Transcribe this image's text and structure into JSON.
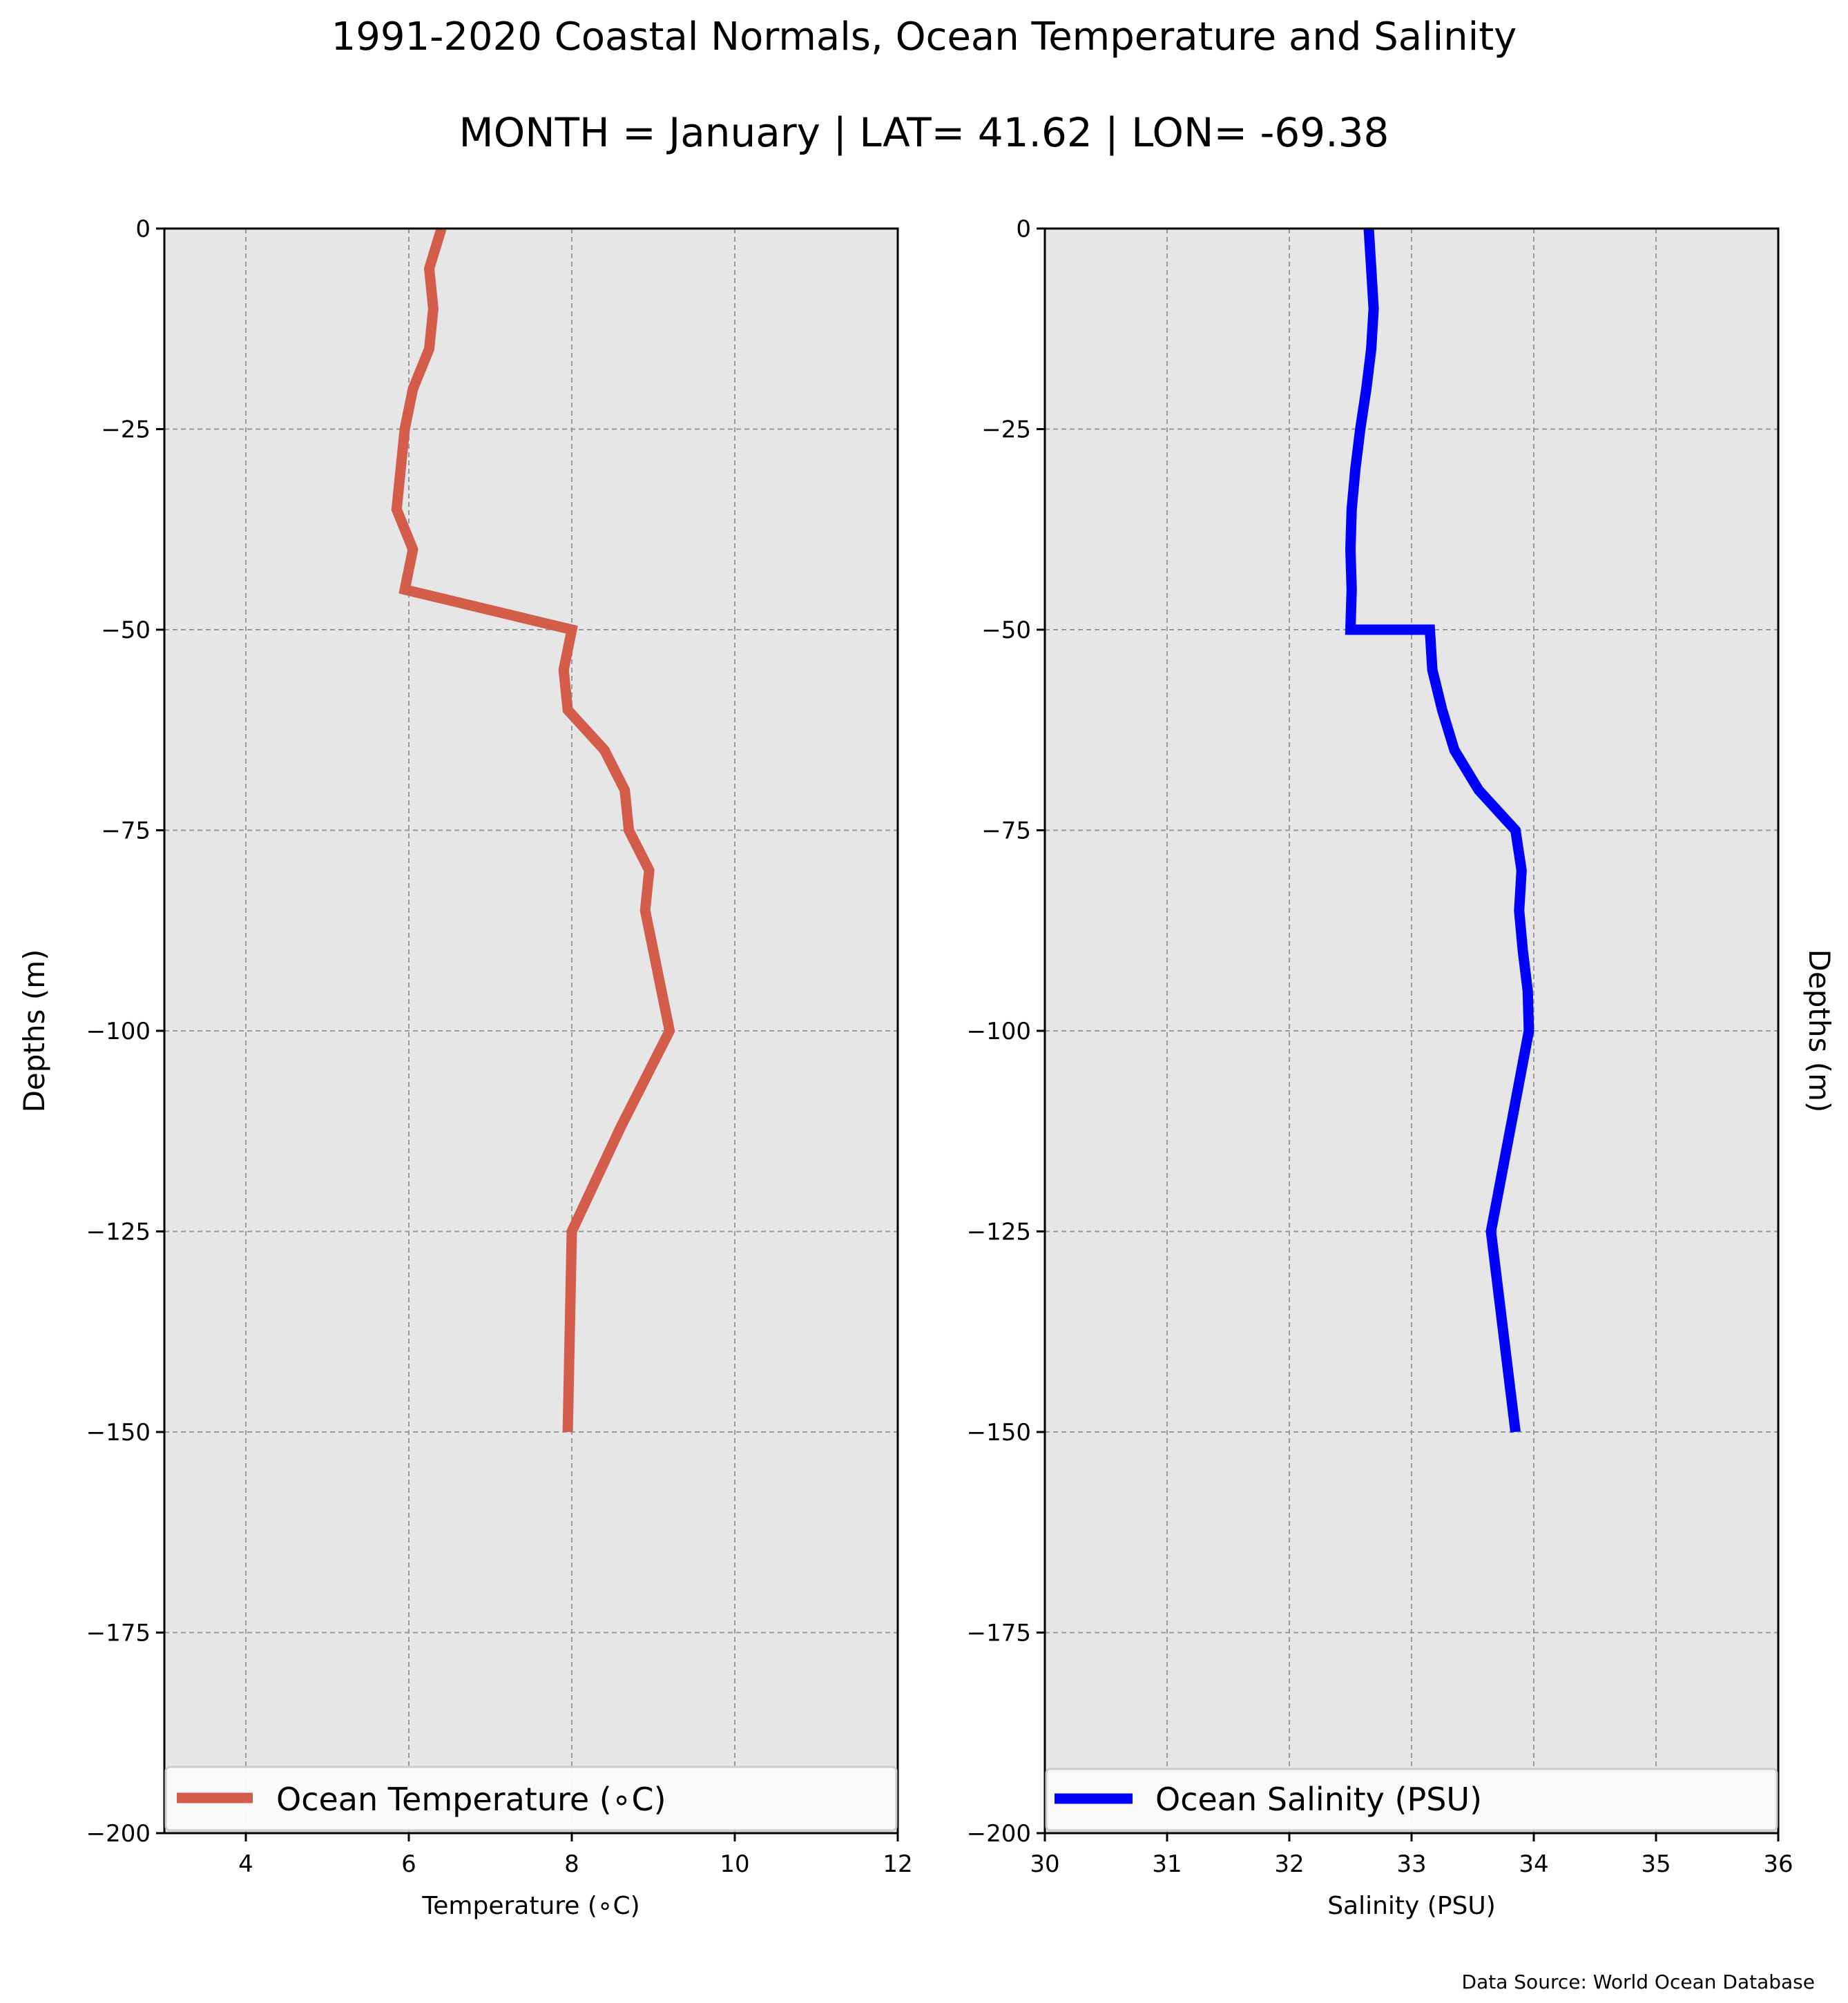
{
  "figure": {
    "title": "1991-2020 Coastal Normals, Ocean Temperature and Salinity",
    "subtitle": "MONTH = January | LAT= 41.62 | LON= -69.38",
    "source": "Data Source: World Ocean Database",
    "background": "#ffffff",
    "axes_face": "#e6e6e6",
    "grid_color": "#9a9a9a"
  },
  "chart_data": [
    {
      "type": "line",
      "xlabel": "Temperature ($^\\circ$C)",
      "xlabel_display": "Temperature (∘C)",
      "ylabel": "Depths (m)",
      "xlim": [
        3,
        12
      ],
      "ylim": [
        -200,
        0
      ],
      "xticks": [
        4,
        6,
        8,
        10,
        12
      ],
      "yticks": [
        0,
        -25,
        -50,
        -75,
        -100,
        -125,
        -150,
        -175,
        -200
      ],
      "ytick_labels": [
        "0",
        "−25",
        "−50",
        "−75",
        "−100",
        "−125",
        "−150",
        "−175",
        "−200"
      ],
      "grid": true,
      "legend_location": "lower center",
      "series": [
        {
          "name": "Ocean Temperature (∘C)",
          "color": "#d45c4a",
          "x": [
            6.4,
            6.25,
            6.3,
            6.25,
            6.05,
            5.95,
            5.9,
            5.85,
            6.05,
            5.95,
            8.0,
            7.9,
            7.95,
            8.4,
            8.65,
            8.7,
            8.95,
            8.9,
            9.0,
            9.1,
            9.2,
            8.6,
            8.0,
            7.95
          ],
          "y": [
            0,
            -5,
            -10,
            -15,
            -20,
            -25,
            -30,
            -35,
            -40,
            -45,
            -50,
            -55,
            -60,
            -65,
            -70,
            -75,
            -80,
            -85,
            -90,
            -95,
            -100,
            -112,
            -125,
            -150
          ]
        }
      ]
    },
    {
      "type": "line",
      "xlabel": "Salinity (PSU)",
      "ylabel": "Depths (m)",
      "xlim": [
        30,
        36
      ],
      "ylim": [
        -200,
        0
      ],
      "xticks": [
        30,
        31,
        32,
        33,
        34,
        35,
        36
      ],
      "yticks": [
        0,
        -25,
        -50,
        -75,
        -100,
        -125,
        -150,
        -175,
        -200
      ],
      "ytick_labels": [
        "0",
        "−25",
        "−50",
        "−75",
        "−100",
        "−125",
        "−150",
        "−175",
        "−200"
      ],
      "grid": true,
      "legend_location": "lower center",
      "series": [
        {
          "name": "Ocean Salinity (PSU)",
          "color": "#0000ff",
          "x": [
            32.65,
            32.67,
            32.69,
            32.67,
            32.63,
            32.58,
            32.54,
            32.51,
            32.5,
            32.51,
            32.5,
            33.15,
            33.17,
            33.25,
            33.35,
            33.55,
            33.85,
            33.9,
            33.88,
            33.91,
            33.95,
            33.96,
            33.65,
            33.85
          ],
          "y": [
            0,
            -5,
            -10,
            -15,
            -20,
            -25,
            -30,
            -35,
            -40,
            -45,
            -50,
            -50,
            -55,
            -60,
            -65,
            -70,
            -75,
            -80,
            -85,
            -90,
            -95,
            -100,
            -125,
            -150
          ]
        }
      ]
    }
  ]
}
